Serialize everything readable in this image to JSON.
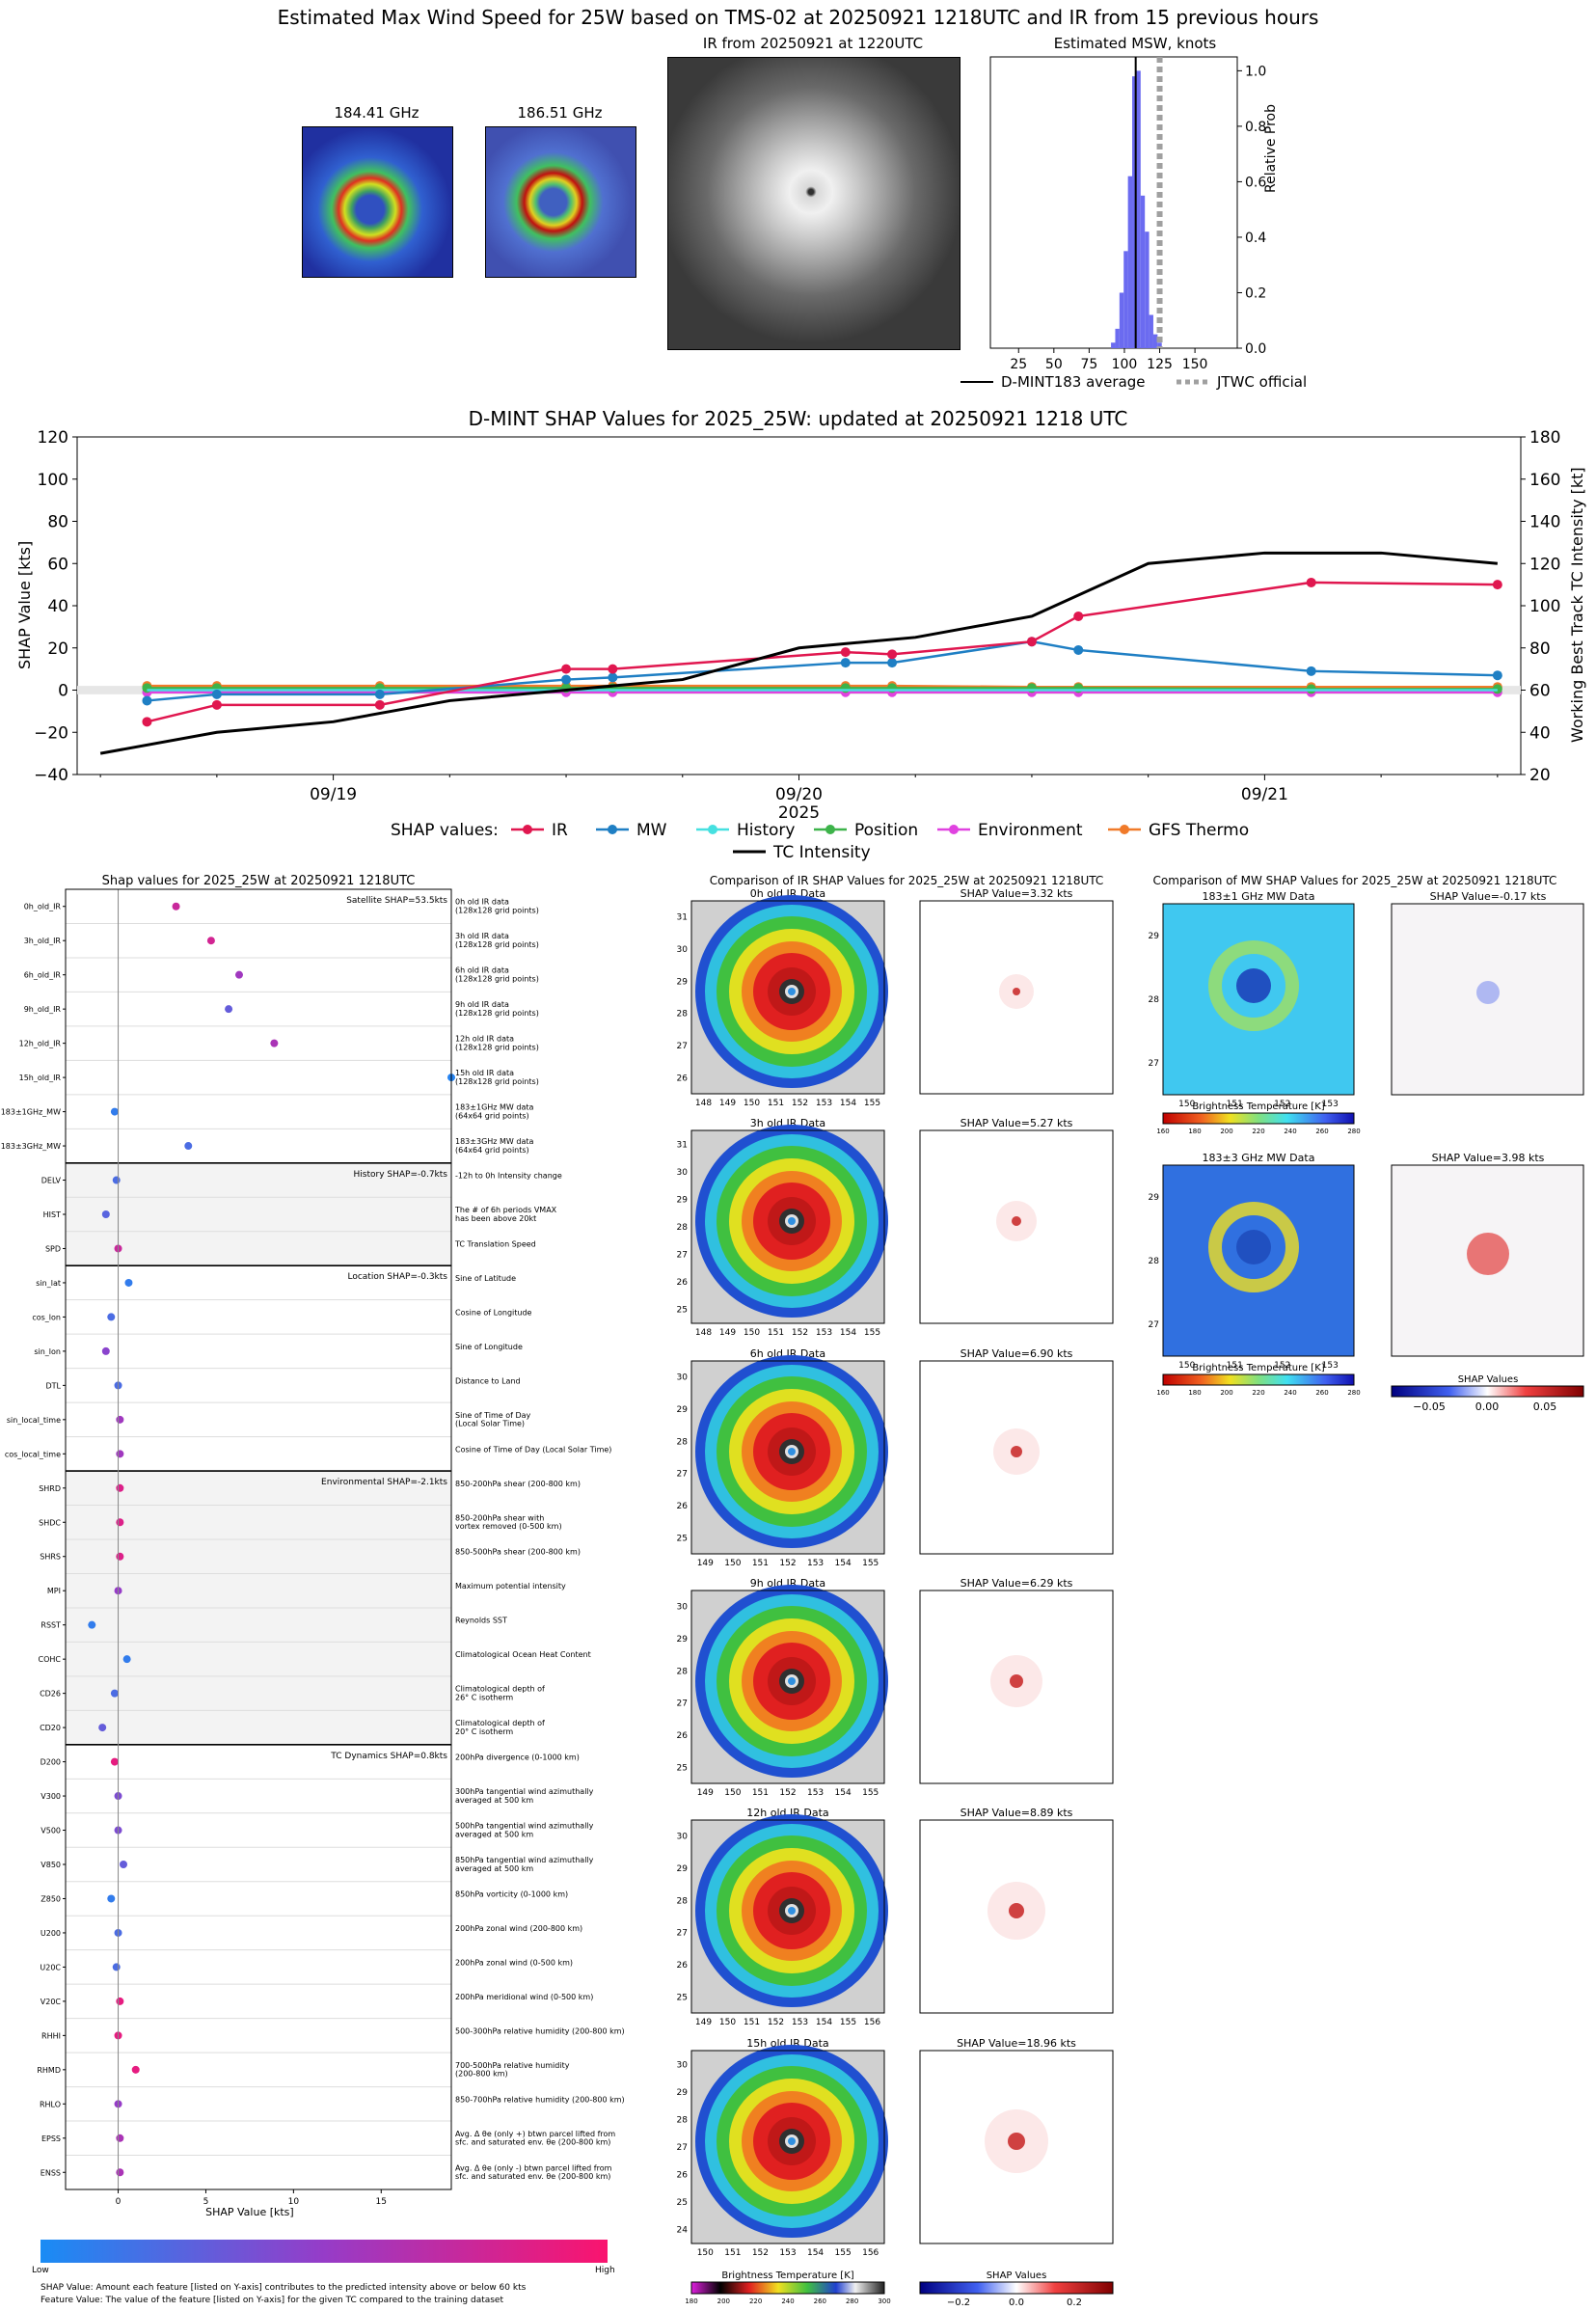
{
  "header": {
    "title": "Estimated Max Wind Speed for 25W based on TMS-02 at 20250921 1218UTC and IR from 15 previous hours",
    "mw1_label": "184.41 GHz",
    "mw2_label": "186.51 GHz",
    "ir_label": "IR from 20250921 at 1220UTC"
  },
  "msw_chart": {
    "title": "Estimated MSW, knots",
    "ylabel": "Relative Prob",
    "x_ticks": [
      "25",
      "50",
      "75",
      "100",
      "125",
      "150"
    ],
    "y_ticks": [
      "0.0",
      "0.2",
      "0.4",
      "0.6",
      "0.8",
      "1.0"
    ],
    "legend": [
      "D-MINT183 average",
      "JTWC official"
    ],
    "colors": {
      "hist": "#6b6bf0",
      "avg": "#000000",
      "jtwc": "#a0a0a0"
    }
  },
  "shap_time": {
    "title": "D-MINT SHAP Values for 2025_25W: updated at 20250921 1218 UTC",
    "ylabel_left": "SHAP Value [kts]",
    "ylabel_right": "Working Best Track TC Intensity [kt]",
    "y_left_ticks": [
      "120",
      "100",
      "80",
      "60",
      "40",
      "20",
      "0",
      "−20",
      "−40"
    ],
    "y_right_ticks": [
      "180",
      "160",
      "140",
      "120",
      "100",
      "80",
      "60",
      "40",
      "20"
    ],
    "x_ticks": [
      "09/19",
      "09/20",
      "09/21"
    ],
    "x_year": "2025",
    "legend_label": "SHAP values:",
    "legend_items": [
      "IR",
      "MW",
      "History",
      "Position",
      "Environment",
      "GFS Thermo"
    ],
    "legend_tc": "TC Intensity",
    "colors": {
      "IR": "#e0174f",
      "MW": "#1f7fc4",
      "History": "#46e0e0",
      "Position": "#3db34a",
      "Environment": "#e042e0",
      "GFS Thermo": "#f07a2a",
      "TC Intensity": "#000000"
    }
  },
  "shap_feat": {
    "title": "Shap values for 2025_25W at 20250921 1218UTC",
    "xlabel": "SHAP Value [kts]",
    "x_ticks": [
      "0",
      "5",
      "10",
      "15"
    ],
    "groups": [
      {
        "label": "Satellite SHAP=53.5kts",
        "shaded": false,
        "rows": [
          [
            "0h_old_IR",
            "0h old IR data\n(128x128 grid points)"
          ],
          [
            "3h_old_IR",
            "3h old IR data\n(128x128 grid points)"
          ],
          [
            "6h_old_IR",
            "6h old IR data\n(128x128 grid points)"
          ],
          [
            "9h_old_IR",
            "9h old IR data\n(128x128 grid points)"
          ],
          [
            "12h_old_IR",
            "12h old IR data\n(128x128 grid points)"
          ],
          [
            "15h_old_IR",
            "15h old IR data\n(128x128 grid points)"
          ],
          [
            "183±1GHz_MW",
            "183±1GHz MW data\n(64x64 grid points)"
          ],
          [
            "183±3GHz_MW",
            "183±3GHz MW data\n(64x64 grid points)"
          ]
        ]
      },
      {
        "label": "History SHAP=-0.7kts",
        "shaded": true,
        "rows": [
          [
            "DELV",
            "-12h to 0h Intensity change"
          ],
          [
            "HIST",
            "The # of 6h periods VMAX\nhas been above 20kt"
          ],
          [
            "SPD",
            "TC Translation Speed"
          ]
        ]
      },
      {
        "label": "Location SHAP=-0.3kts",
        "shaded": false,
        "rows": [
          [
            "sin_lat",
            "Sine of Latitude"
          ],
          [
            "cos_lon",
            "Cosine of Longitude"
          ],
          [
            "sin_lon",
            "Sine of Longitude"
          ],
          [
            "DTL",
            "Distance to Land"
          ],
          [
            "sin_local_time",
            "Sine of Time of Day\n(Local Solar Time)"
          ],
          [
            "cos_local_time",
            "Cosine of Time of Day (Local Solar Time)"
          ]
        ]
      },
      {
        "label": "Environmental SHAP=-2.1kts",
        "shaded": true,
        "rows": [
          [
            "SHRD",
            "850-200hPa shear (200-800 km)"
          ],
          [
            "SHDC",
            "850-200hPa shear with\nvortex removed (0-500 km)"
          ],
          [
            "SHRS",
            "850-500hPa shear (200-800 km)"
          ],
          [
            "MPI",
            "Maximum potential intensity"
          ],
          [
            "RSST",
            "Reynolds SST"
          ],
          [
            "COHC",
            "Climatological Ocean Heat Content"
          ],
          [
            "CD26",
            "Climatological depth of\n26° C isotherm"
          ],
          [
            "CD20",
            "Climatological depth of\n20° C isotherm"
          ]
        ]
      },
      {
        "label": "TC Dynamics SHAP=0.8kts",
        "shaded": false,
        "rows": [
          [
            "D200",
            "200hPa divergence (0-1000 km)"
          ],
          [
            "V300",
            "300hPa tangential wind azimuthally\naveraged at 500 km"
          ],
          [
            "V500",
            "500hPa tangential wind azimuthally\naveraged at 500 km"
          ],
          [
            "V850",
            "850hPa tangential wind azimuthally\naveraged at 500 km"
          ],
          [
            "Z850",
            "850hPa vorticity (0-1000 km)"
          ],
          [
            "U200",
            "200hPa zonal wind (200-800 km)"
          ],
          [
            "U20C",
            "200hPa zonal wind (0-500 km)"
          ],
          [
            "V20C",
            "200hPa meridional wind (0-500 km)"
          ],
          [
            "RHHI",
            "500-300hPa relative humidity (200-800 km)"
          ],
          [
            "RHMD",
            "700-500hPa relative humidity\n(200-800 km)"
          ],
          [
            "RHLO",
            "850-700hPa relative humidity (200-800 km)"
          ],
          [
            "EPSS",
            "Avg. Δ θe (only +) btwn parcel lifted from\nsfc. and saturated env. θe (200-800 km)"
          ],
          [
            "ENSS",
            "Avg. Δ θe (only -) btwn parcel lifted from\nsfc. and saturated env. θe (200-800 km)"
          ]
        ]
      }
    ],
    "colorbar_low": "Low",
    "colorbar_high": "High",
    "footnote1": "SHAP Value: Amount each feature [listed on Y-axis] contributes to the predicted intensity above or below 60 kts",
    "footnote2": "Feature Value: The value of the feature [listed on Y-axis] for the given TC compared to the training dataset"
  },
  "ir_compare": {
    "title": "Comparison of IR SHAP Values for 2025_25W at 20250921 1218UTC",
    "panels": [
      {
        "img_title": "0h old IR Data",
        "shap_title": "SHAP Value=3.32 kts",
        "x_ticks": [
          "148",
          "149",
          "150",
          "151",
          "152",
          "153",
          "154",
          "155"
        ],
        "y_ticks": [
          "31",
          "30",
          "29",
          "28",
          "27",
          "26"
        ]
      },
      {
        "img_title": "3h old IR Data",
        "shap_title": "SHAP Value=5.27 kts",
        "x_ticks": [
          "148",
          "149",
          "150",
          "151",
          "152",
          "153",
          "154",
          "155"
        ],
        "y_ticks": [
          "31",
          "30",
          "29",
          "28",
          "27",
          "26",
          "25"
        ]
      },
      {
        "img_title": "6h old IR Data",
        "shap_title": "SHAP Value=6.90 kts",
        "x_ticks": [
          "149",
          "150",
          "151",
          "152",
          "153",
          "154",
          "155"
        ],
        "y_ticks": [
          "30",
          "29",
          "28",
          "27",
          "26",
          "25"
        ]
      },
      {
        "img_title": "9h old IR Data",
        "shap_title": "SHAP Value=6.29 kts",
        "x_ticks": [
          "149",
          "150",
          "151",
          "152",
          "153",
          "154",
          "155"
        ],
        "y_ticks": [
          "30",
          "29",
          "28",
          "27",
          "26",
          "25"
        ]
      },
      {
        "img_title": "12h old IR Data",
        "shap_title": "SHAP Value=8.89 kts",
        "x_ticks": [
          "149",
          "150",
          "151",
          "152",
          "153",
          "154",
          "155",
          "156"
        ],
        "y_ticks": [
          "30",
          "29",
          "28",
          "27",
          "26",
          "25"
        ]
      },
      {
        "img_title": "15h old IR Data",
        "shap_title": "SHAP Value=18.96 kts",
        "x_ticks": [
          "150",
          "151",
          "152",
          "153",
          "154",
          "155",
          "156"
        ],
        "y_ticks": [
          "30",
          "29",
          "28",
          "27",
          "26",
          "25",
          "24"
        ]
      }
    ],
    "bt_label": "Brightness Temperature [K]",
    "bt_ticks": [
      "180",
      "200",
      "220",
      "240",
      "260",
      "280",
      "300"
    ],
    "shap_label": "SHAP Values",
    "shap_ticks": [
      "−0.2",
      "0.0",
      "0.2"
    ]
  },
  "mw_compare": {
    "title": "Comparison of MW SHAP Values for 2025_25W at 20250921 1218UTC",
    "panels": [
      {
        "img_title": "183±1 GHz MW Data",
        "shap_title": "SHAP Value=-0.17 kts",
        "x_ticks": [
          "150",
          "151",
          "152",
          "153"
        ],
        "y_ticks": [
          "29",
          "28",
          "27"
        ]
      },
      {
        "img_title": "183±3 GHz MW Data",
        "shap_title": "SHAP Value=3.98 kts",
        "x_ticks": [
          "150",
          "151",
          "152",
          "153"
        ],
        "y_ticks": [
          "29",
          "28",
          "27"
        ]
      }
    ],
    "bt_label": "Brightness Temperature [K]",
    "bt_ticks": [
      "160",
      "180",
      "200",
      "220",
      "240",
      "260",
      "280"
    ],
    "shap_label": "SHAP Values",
    "shap_ticks": [
      "−0.05",
      "0.00",
      "0.05"
    ]
  },
  "chart_data": [
    {
      "type": "bar",
      "title": "Estimated MSW, knots",
      "xlabel": "",
      "ylabel": "Relative Prob",
      "xlim": [
        5,
        180
      ],
      "ylim": [
        0,
        1.05
      ],
      "x": [
        92,
        95,
        98,
        101,
        104,
        107,
        110,
        113,
        116,
        119,
        122,
        125
      ],
      "values": [
        0.02,
        0.07,
        0.2,
        0.35,
        0.62,
        0.98,
        1.0,
        0.55,
        0.42,
        0.12,
        0.05,
        0.02
      ],
      "d_mint183_average": 108,
      "jtwc_official": 125
    },
    {
      "type": "line",
      "title": "D-MINT SHAP Values for 2025_25W: updated at 20250921 1218 UTC",
      "xlabel": "2025",
      "ylabel": "SHAP Value [kts]",
      "ylim": [
        -40,
        120
      ],
      "y2lim": [
        20,
        180
      ],
      "x_day_range": [
        18.45,
        21.55
      ],
      "series": [
        {
          "name": "IR",
          "x": [
            18.6,
            18.75,
            19.1,
            19.5,
            19.6,
            20.1,
            20.2,
            20.5,
            20.6,
            21.1,
            21.5
          ],
          "values": [
            -15,
            -7,
            -7,
            10,
            10,
            18,
            17,
            23,
            35,
            51,
            50
          ]
        },
        {
          "name": "MW",
          "x": [
            18.6,
            18.75,
            19.1,
            19.5,
            19.6,
            20.1,
            20.2,
            20.5,
            20.6,
            21.1,
            21.5
          ],
          "values": [
            -5,
            -2,
            -2,
            5,
            6,
            13,
            13,
            23,
            19,
            9,
            7
          ]
        },
        {
          "name": "History",
          "x": [
            18.6,
            21.5
          ],
          "values": [
            0,
            0
          ]
        },
        {
          "name": "Position",
          "x": [
            18.6,
            18.75,
            19.1,
            19.5,
            19.6,
            20.1,
            20.2,
            20.5,
            20.6,
            21.1,
            21.5
          ],
          "values": [
            1,
            1,
            1,
            1,
            1,
            1,
            1,
            1,
            1,
            0.5,
            0.5
          ]
        },
        {
          "name": "Environment",
          "x": [
            18.6,
            18.75,
            19.1,
            19.5,
            19.6,
            20.1,
            20.2,
            20.5,
            20.6,
            21.1,
            21.5
          ],
          "values": [
            -1,
            -1,
            -1,
            -1,
            -1,
            -1,
            -1,
            -1,
            -1,
            -1,
            -1
          ]
        },
        {
          "name": "GFS Thermo",
          "x": [
            18.6,
            18.75,
            19.1,
            19.5,
            19.6,
            20.1,
            20.2,
            20.5,
            20.6,
            21.1,
            21.5
          ],
          "values": [
            2,
            2,
            2,
            2,
            2,
            2,
            2,
            1.5,
            1.5,
            1.5,
            1.5
          ]
        },
        {
          "name": "TC Intensity",
          "axis": "right",
          "x": [
            18.5,
            18.75,
            19.0,
            19.25,
            19.5,
            19.75,
            20.0,
            20.25,
            20.5,
            20.75,
            21.0,
            21.25,
            21.5
          ],
          "values": [
            30,
            40,
            45,
            55,
            60,
            65,
            80,
            85,
            95,
            120,
            125,
            125,
            120
          ]
        }
      ]
    },
    {
      "type": "scatter",
      "title": "Shap values for 2025_25W at 20250921 1218UTC",
      "xlabel": "SHAP Value [kts]",
      "xlim": [
        -3,
        19
      ],
      "features": [
        "0h_old_IR",
        "3h_old_IR",
        "6h_old_IR",
        "9h_old_IR",
        "12h_old_IR",
        "15h_old_IR",
        "183±1GHz_MW",
        "183±3GHz_MW",
        "DELV",
        "HIST",
        "SPD",
        "sin_lat",
        "cos_lon",
        "sin_lon",
        "DTL",
        "sin_local_time",
        "cos_local_time",
        "SHRD",
        "SHDC",
        "SHRS",
        "MPI",
        "RSST",
        "COHC",
        "CD26",
        "CD20",
        "D200",
        "V300",
        "V500",
        "V850",
        "Z850",
        "U200",
        "U20C",
        "V20C",
        "RHHI",
        "RHMD",
        "RHLO",
        "EPSS",
        "ENSS"
      ],
      "values": [
        3.3,
        5.3,
        6.9,
        6.3,
        8.9,
        19.0,
        -0.2,
        4.0,
        -0.1,
        -0.7,
        0.0,
        0.6,
        -0.4,
        -0.7,
        0.0,
        0.1,
        0.1,
        0.1,
        0.1,
        0.1,
        0.0,
        -1.5,
        0.5,
        -0.2,
        -0.9,
        -0.2,
        0.0,
        0.0,
        0.3,
        -0.4,
        0.0,
        -0.1,
        0.1,
        0.0,
        1.0,
        0.0,
        0.1,
        0.1
      ],
      "feature_value": [
        0.75,
        0.8,
        0.55,
        0.3,
        0.6,
        0.05,
        0.1,
        0.2,
        0.2,
        0.25,
        0.75,
        0.1,
        0.2,
        0.45,
        0.2,
        0.55,
        0.55,
        0.85,
        0.85,
        0.85,
        0.5,
        0.1,
        0.1,
        0.2,
        0.3,
        0.9,
        0.4,
        0.4,
        0.3,
        0.1,
        0.2,
        0.2,
        0.9,
        0.9,
        0.9,
        0.5,
        0.6,
        0.6
      ]
    }
  ]
}
